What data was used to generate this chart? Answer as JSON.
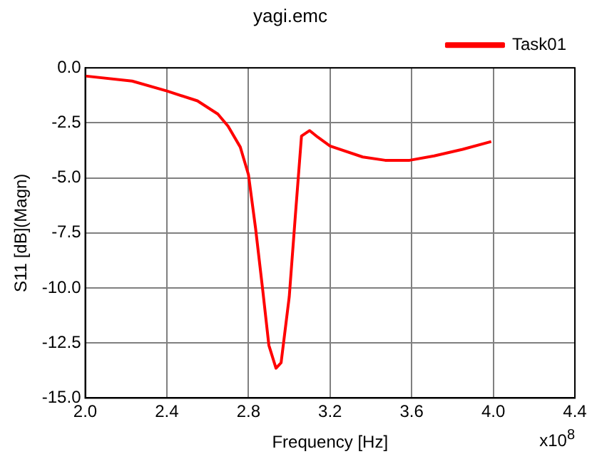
{
  "chart_data": {
    "type": "line",
    "title": "yagi.emc",
    "xlabel": "Frequency [Hz]",
    "ylabel": "S11 [dB](Magn)",
    "annotations": [
      "x10$^{8}$"
    ],
    "x": [
      2.0,
      2.23,
      2.4,
      2.55,
      2.65,
      2.7,
      2.76,
      2.8,
      2.835,
      2.87,
      2.9,
      2.935,
      2.96,
      3.0,
      3.03,
      3.06,
      3.1,
      3.14,
      3.2,
      3.36,
      3.47,
      3.59,
      3.71,
      3.85,
      3.99
    ],
    "series": [
      {
        "name": "Task01",
        "color": "#ff0000",
        "values": [
          -0.37,
          -0.6,
          -1.05,
          -1.5,
          -2.1,
          -2.65,
          -3.6,
          -4.85,
          -7.3,
          -10.1,
          -12.6,
          -13.65,
          -13.4,
          -10.4,
          -6.7,
          -3.1,
          -2.85,
          -3.15,
          -3.55,
          -4.05,
          -4.2,
          -4.2,
          -4.0,
          -3.7,
          -3.35
        ]
      }
    ],
    "xlim": [
      2.0,
      4.4
    ],
    "xticks": [
      {
        "value": 2.0,
        "label": "2.0"
      },
      {
        "value": 2.4,
        "label": "2.4"
      },
      {
        "value": 2.8,
        "label": "2.8"
      },
      {
        "value": 3.2,
        "label": "3.2"
      },
      {
        "value": 3.6,
        "label": "3.6"
      },
      {
        "value": 4.0,
        "label": "4.0"
      },
      {
        "value": 4.4,
        "label": "4.4"
      }
    ],
    "ylim": [
      -15,
      0
    ],
    "yticks": [
      {
        "value": 0,
        "label": "0.0"
      },
      {
        "value": -2.5,
        "label": "-2.5"
      },
      {
        "value": -5,
        "label": "-5.0"
      },
      {
        "value": -7.5,
        "label": "-7.5"
      },
      {
        "value": -10,
        "label": "-10.0"
      },
      {
        "value": -12.5,
        "label": "-12.5"
      },
      {
        "value": -15,
        "label": "-15.0"
      }
    ],
    "grid": true,
    "legend": "top right",
    "marker": "none",
    "line_style": "solid"
  }
}
